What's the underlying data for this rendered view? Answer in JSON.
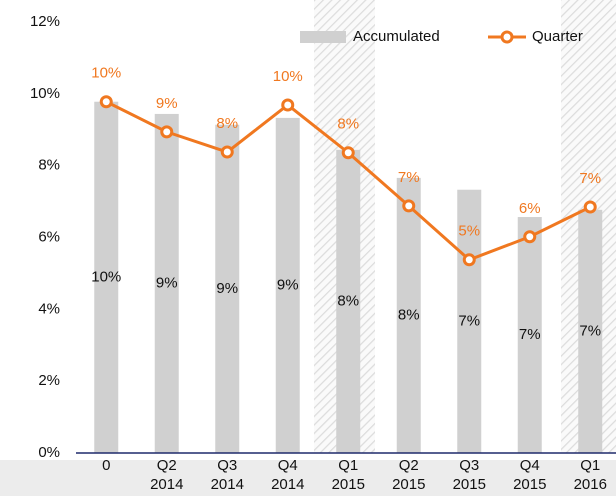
{
  "chart_data": {
    "type": "bar-line",
    "categories": [
      "0",
      "Q2 2014",
      "Q3 2014",
      "Q4 2014",
      "Q1 2015",
      "Q2 2015",
      "Q3 2015",
      "Q4 2015",
      "Q1 2016"
    ],
    "series": [
      {
        "name": "Accumulated",
        "type": "bar",
        "color": "#d0d0d0",
        "values": [
          9.78,
          9.44,
          9.14,
          9.33,
          8.44,
          7.66,
          7.33,
          6.57,
          6.77
        ],
        "value_labels": [
          "10%",
          "9%",
          "9%",
          "9%",
          "8%",
          "8%",
          "7%",
          "7%",
          "7%"
        ]
      },
      {
        "name": "Quarter",
        "type": "line",
        "color": "#f07820",
        "values": [
          9.78,
          8.94,
          8.38,
          9.69,
          8.36,
          6.88,
          5.38,
          6.02,
          6.85
        ],
        "value_labels": [
          "10%",
          "9%",
          "8%",
          "10%",
          "8%",
          "7%",
          "5%",
          "6%",
          "7%"
        ]
      }
    ],
    "ylim": [
      0,
      12
    ],
    "yticks": [
      {
        "value": 0,
        "label": "0%"
      },
      {
        "value": 2,
        "label": "2%"
      },
      {
        "value": 4,
        "label": "4%"
      },
      {
        "value": 6,
        "label": "6%"
      },
      {
        "value": 8,
        "label": "8%"
      },
      {
        "value": 10,
        "label": "10%"
      },
      {
        "value": 12,
        "label": "12%"
      }
    ],
    "grid": false,
    "legend": "top-right"
  }
}
